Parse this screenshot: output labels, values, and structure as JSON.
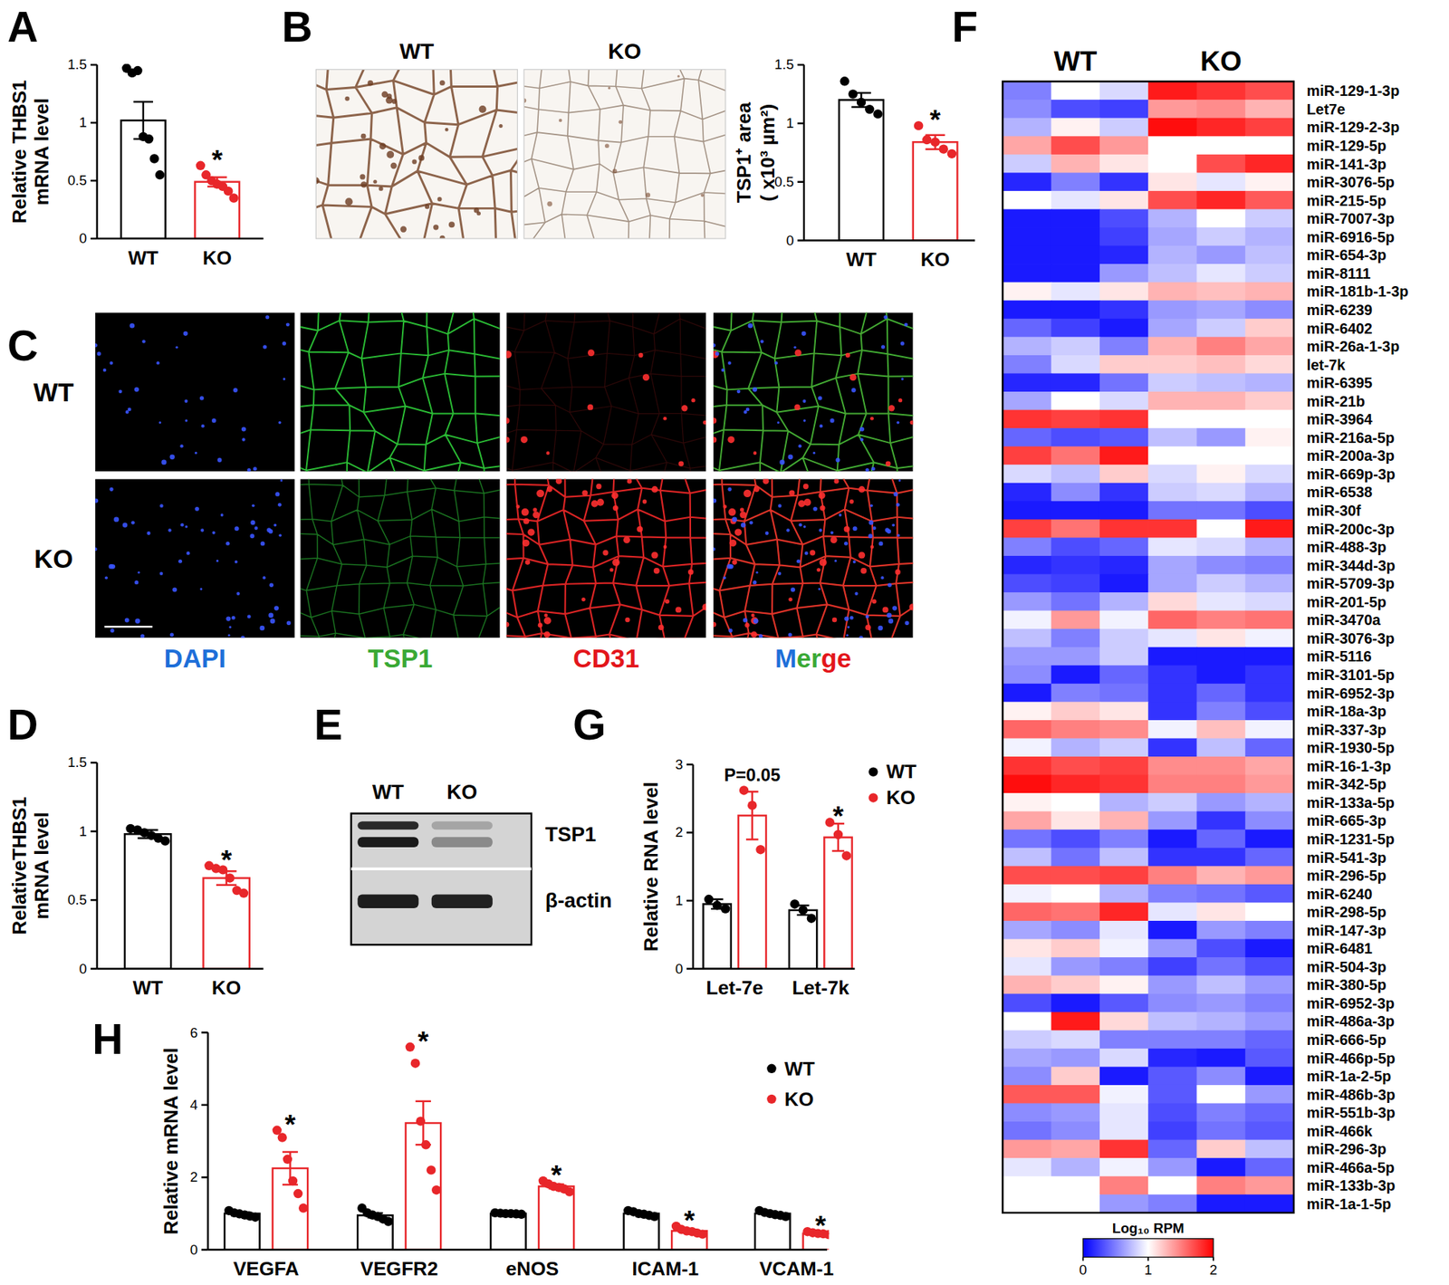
{
  "panel_letters": [
    "A",
    "B",
    "C",
    "D",
    "E",
    "F",
    "G",
    "H"
  ],
  "chart_data": [
    {
      "type": "bar",
      "ylabel": [
        "Relative THBS1",
        "mRNA level"
      ],
      "categories": [
        "WT",
        "KO"
      ],
      "values": [
        1.02,
        0.49
      ],
      "errors": [
        0.16,
        0.04
      ],
      "points": [
        [
          1.47,
          1.43,
          1.45,
          0.88,
          0.86,
          0.69,
          0.55
        ],
        [
          0.63,
          0.55,
          0.5,
          0.47,
          0.45,
          0.41,
          0.35
        ]
      ],
      "colors": [
        "#000000",
        "#e8262a"
      ],
      "significance": [
        null,
        "*"
      ],
      "ylim": [
        0,
        1.5
      ],
      "yticks": [
        0,
        0.5,
        1,
        1.5
      ]
    },
    {
      "type": "bar",
      "ylabel": [
        "TSP1⁺ area",
        "( x10³ µm²)"
      ],
      "categories": [
        "WT",
        "KO"
      ],
      "values": [
        1.2,
        0.84
      ],
      "errors": [
        0.06,
        0.06
      ],
      "points": [
        [
          1.36,
          1.25,
          1.18,
          1.12,
          1.08
        ],
        [
          0.98,
          0.86,
          0.84,
          0.78,
          0.74
        ]
      ],
      "colors": [
        "#000000",
        "#e8262a"
      ],
      "significance": [
        null,
        "*"
      ],
      "ylim": [
        0,
        1.5
      ],
      "yticks": [
        0,
        0.5,
        1,
        1.5
      ]
    },
    {
      "type": "bar",
      "ylabel": [
        "RelativeTHBS1",
        "mRNA level"
      ],
      "categories": [
        "WT",
        "KO"
      ],
      "values": [
        0.98,
        0.66
      ],
      "errors": [
        0.03,
        0.05
      ],
      "points": [
        [
          1.02,
          1.01,
          0.99,
          0.97,
          0.95,
          0.93
        ],
        [
          0.75,
          0.73,
          0.72,
          0.66,
          0.57,
          0.55
        ]
      ],
      "colors": [
        "#000000",
        "#e8262a"
      ],
      "significance": [
        null,
        "*"
      ],
      "ylim": [
        0,
        1.5
      ],
      "yticks": [
        0,
        0.5,
        1,
        1.5
      ]
    },
    {
      "type": "bar",
      "ylabel": [
        "Relative RNA level"
      ],
      "categories": [
        "Let-7e",
        "Let-7k"
      ],
      "series": [
        {
          "name": "WT",
          "color": "#000000",
          "values": [
            0.95,
            0.86
          ],
          "errors": [
            0.07,
            0.07
          ],
          "points": [
            [
              1.02,
              0.93,
              0.88
            ],
            [
              0.95,
              0.86,
              0.74
            ]
          ]
        },
        {
          "name": "KO",
          "color": "#e8262a",
          "values": [
            2.25,
            1.93
          ],
          "errors": [
            0.35,
            0.2
          ],
          "points": [
            [
              2.62,
              2.4,
              1.75
            ],
            [
              2.15,
              1.97,
              1.66
            ]
          ],
          "significance": [
            "P=0.05",
            "*"
          ]
        }
      ],
      "ylim": [
        0,
        3
      ],
      "yticks": [
        0,
        1,
        2,
        3
      ],
      "legend": "upper right"
    },
    {
      "type": "bar",
      "ylabel": [
        "Relative mRNA level"
      ],
      "categories": [
        "VEGFA",
        "VEGFR2",
        "eNOS",
        "ICAM-1",
        "VCAM-1"
      ],
      "series": [
        {
          "name": "WT",
          "color": "#000000",
          "values": [
            1.0,
            0.95,
            1.0,
            1.0,
            1.0
          ],
          "errors": [
            0.04,
            0.06,
            0.01,
            0.03,
            0.03
          ],
          "points": [
            [
              1.08,
              1.02,
              0.99,
              0.96,
              0.93,
              0.9
            ],
            [
              1.15,
              1.02,
              0.96,
              0.92,
              0.85,
              0.78
            ],
            [
              1.02,
              1.01,
              1.0,
              1.0,
              0.99,
              0.98
            ],
            [
              1.08,
              1.05,
              1.0,
              0.98,
              0.95,
              0.92
            ],
            [
              1.08,
              1.03,
              1.0,
              0.97,
              0.95,
              0.92
            ]
          ]
        },
        {
          "name": "KO",
          "color": "#e8262a",
          "values": [
            2.25,
            3.5,
            1.75,
            0.52,
            0.45
          ],
          "errors": [
            0.45,
            0.6,
            0.06,
            0.04,
            0.02
          ],
          "points": [
            [
              3.3,
              3.1,
              2.5,
              1.9,
              1.55,
              1.15
            ],
            [
              5.6,
              5.15,
              3.55,
              2.9,
              2.2,
              1.65
            ],
            [
              1.9,
              1.82,
              1.75,
              1.72,
              1.68,
              1.6
            ],
            [
              0.65,
              0.56,
              0.52,
              0.5,
              0.46,
              0.43
            ],
            [
              0.5,
              0.47,
              0.45,
              0.44,
              0.42,
              0.4
            ]
          ],
          "significance": [
            "*",
            "*",
            "*",
            "*",
            "*"
          ]
        }
      ],
      "ylim": [
        0,
        6
      ],
      "yticks": [
        0,
        2,
        4,
        6
      ],
      "legend": "upper right"
    },
    {
      "type": "heatmap",
      "column_groups": [
        "WT",
        "KO"
      ],
      "rows": [
        "miR-129-1-3p",
        "Let7e",
        "miR-129-2-3p",
        "miR-129-5p",
        "miR-141-3p",
        "miR-3076-5p",
        "miR-215-5p",
        "miR-7007-3p",
        "miR-6916-5p",
        "miR-654-3p",
        "miR-8111",
        "miR-181b-1-3p",
        "miR-6239",
        "miR-6402",
        "miR-26a-1-3p",
        "let-7k",
        "miR-6395",
        "miR-21b",
        "miR-3964",
        "miR-216a-5p",
        "miR-200a-3p",
        "miR-669p-3p",
        "miR-6538",
        "miR-30f",
        "miR-200c-3p",
        "miR-488-3p",
        "miR-344d-3p",
        "miR-5709-3p",
        "miR-201-5p",
        "miR-3470a",
        "miR-3076-3p",
        "miR-5116",
        "miR-3101-5p",
        "miR-6952-3p",
        "miR-18a-3p",
        "miR-337-3p",
        "miR-1930-5p",
        "miR-16-1-3p",
        "miR-342-5p",
        "miR-133a-5p",
        "miR-665-3p",
        "miR-1231-5p",
        "miR-541-3p",
        "miR-296-5p",
        "miR-6240",
        "miR-298-5p",
        "miR-147-3p",
        "miR-6481",
        "miR-504-3p",
        "miR-380-5p",
        "miR-6952-3p",
        "miR-486a-3p",
        "miR-666-5p",
        "miR-466p-5p",
        "miR-1a-2-5p",
        "miR-486b-3p",
        "miR-551b-3p",
        "miR-466k",
        "miR-296-3p",
        "miR-466a-5p",
        "miR-133b-3p",
        "miR-1a-1-5p"
      ],
      "cells": [
        [
          0.5,
          1.0,
          0.85,
          1.9,
          1.8,
          1.7
        ],
        [
          0.55,
          0.3,
          0.25,
          1.4,
          1.45,
          1.3
        ],
        [
          0.7,
          1.05,
          0.8,
          1.95,
          1.85,
          1.75
        ],
        [
          1.35,
          1.7,
          1.4,
          1.0,
          1.0,
          1.0
        ],
        [
          0.8,
          1.3,
          1.1,
          1.0,
          1.7,
          1.85
        ],
        [
          0.15,
          0.5,
          0.2,
          1.1,
          0.9,
          1.05
        ],
        [
          1.0,
          0.9,
          1.1,
          1.7,
          1.85,
          1.65
        ],
        [
          0.1,
          0.1,
          0.3,
          0.7,
          1.0,
          0.8
        ],
        [
          0.1,
          0.1,
          0.25,
          0.65,
          0.8,
          0.7
        ],
        [
          0.1,
          0.1,
          0.15,
          0.7,
          0.6,
          0.75
        ],
        [
          0.1,
          0.1,
          0.6,
          0.75,
          0.9,
          0.8
        ],
        [
          1.05,
          0.9,
          1.1,
          1.3,
          1.25,
          1.3
        ],
        [
          0.1,
          0.1,
          0.2,
          0.6,
          0.65,
          0.55
        ],
        [
          0.4,
          0.25,
          0.1,
          0.65,
          0.8,
          1.2
        ],
        [
          0.7,
          0.8,
          0.5,
          1.3,
          1.5,
          1.35
        ],
        [
          0.5,
          0.85,
          1.2,
          1.2,
          1.25,
          1.15
        ],
        [
          0.15,
          0.15,
          0.45,
          0.8,
          0.75,
          0.7
        ],
        [
          0.65,
          1.0,
          0.85,
          1.3,
          1.3,
          1.2
        ],
        [
          1.8,
          1.75,
          1.8,
          1.0,
          1.0,
          1.0
        ],
        [
          0.4,
          0.3,
          0.35,
          0.75,
          0.6,
          1.05
        ],
        [
          1.75,
          1.55,
          1.9,
          1.0,
          1.0,
          1.0
        ],
        [
          0.85,
          0.75,
          1.2,
          0.85,
          1.05,
          0.85
        ],
        [
          0.15,
          0.55,
          0.2,
          0.8,
          0.85,
          0.7
        ],
        [
          0.1,
          0.1,
          0.1,
          0.45,
          0.45,
          0.3
        ],
        [
          1.75,
          1.55,
          1.8,
          1.8,
          1.0,
          1.9
        ],
        [
          0.5,
          0.3,
          0.4,
          0.9,
          0.85,
          0.7
        ],
        [
          0.15,
          0.2,
          0.15,
          0.65,
          0.55,
          0.5
        ],
        [
          0.3,
          0.25,
          0.1,
          0.65,
          0.8,
          0.7
        ],
        [
          0.6,
          0.45,
          0.7,
          1.15,
          0.9,
          0.85
        ],
        [
          0.95,
          1.4,
          0.95,
          1.6,
          1.5,
          1.55
        ],
        [
          0.75,
          0.5,
          0.8,
          0.9,
          1.1,
          0.95
        ],
        [
          0.6,
          0.6,
          0.8,
          0.1,
          0.1,
          0.1
        ],
        [
          0.55,
          0.1,
          0.4,
          0.2,
          0.1,
          0.2
        ],
        [
          0.1,
          0.5,
          0.45,
          0.2,
          0.4,
          0.2
        ],
        [
          1.05,
          1.2,
          1.1,
          0.2,
          0.5,
          0.3
        ],
        [
          1.6,
          1.5,
          1.45,
          0.95,
          1.25,
          0.95
        ],
        [
          0.95,
          0.7,
          0.8,
          0.2,
          0.75,
          0.4
        ],
        [
          1.8,
          1.7,
          1.75,
          1.45,
          1.45,
          1.35
        ],
        [
          1.95,
          1.85,
          1.8,
          1.5,
          1.5,
          1.4
        ],
        [
          1.05,
          1.0,
          0.7,
          0.8,
          0.6,
          0.7
        ],
        [
          1.35,
          1.1,
          1.3,
          0.6,
          0.2,
          0.55
        ],
        [
          0.45,
          0.3,
          0.5,
          0.1,
          0.4,
          0.1
        ],
        [
          0.75,
          0.45,
          0.75,
          0.2,
          0.2,
          0.4
        ],
        [
          1.7,
          1.7,
          1.75,
          1.5,
          1.3,
          1.4
        ],
        [
          0.95,
          1.0,
          0.7,
          0.5,
          0.45,
          0.35
        ],
        [
          1.6,
          1.55,
          1.85,
          0.9,
          1.1,
          1.0
        ],
        [
          0.65,
          0.55,
          0.9,
          0.1,
          0.6,
          0.5
        ],
        [
          1.1,
          1.2,
          0.95,
          0.6,
          0.3,
          0.1
        ],
        [
          0.9,
          0.6,
          0.5,
          0.25,
          0.45,
          0.3
        ],
        [
          1.3,
          1.2,
          1.05,
          0.6,
          0.75,
          0.6
        ],
        [
          0.3,
          0.1,
          0.35,
          0.55,
          0.6,
          0.5
        ],
        [
          1.0,
          1.9,
          1.15,
          0.75,
          0.7,
          0.6
        ],
        [
          0.8,
          0.85,
          0.5,
          0.5,
          0.5,
          0.4
        ],
        [
          0.65,
          0.6,
          0.85,
          0.15,
          0.1,
          0.35
        ],
        [
          0.55,
          1.2,
          0.1,
          0.35,
          0.55,
          0.1
        ],
        [
          1.65,
          1.65,
          0.95,
          0.35,
          1.0,
          0.6
        ],
        [
          0.55,
          0.6,
          0.9,
          0.3,
          0.5,
          0.4
        ],
        [
          0.45,
          0.55,
          0.9,
          0.25,
          0.45,
          0.35
        ],
        [
          1.4,
          1.35,
          1.8,
          0.4,
          1.2,
          0.75
        ],
        [
          0.9,
          0.7,
          0.95,
          0.6,
          0.1,
          0.4
        ],
        [
          1.0,
          1.0,
          1.5,
          1.0,
          1.5,
          1.4
        ],
        [
          1.0,
          1.0,
          0.6,
          0.5,
          0.1,
          0.1
        ]
      ],
      "colorbar": {
        "label": "Log₁₀ RPM",
        "range": [
          0,
          2
        ],
        "ticks": [
          0,
          1,
          2
        ],
        "colors": [
          "#0000ff",
          "#ffffff",
          "#ff0000"
        ]
      }
    }
  ],
  "images": {
    "B": {
      "labels": [
        "WT",
        "KO"
      ]
    },
    "C": {
      "rows": [
        "WT",
        "KO"
      ],
      "columns": [
        [
          {
            "text": "DAPI",
            "color": "#1e6fd9"
          }
        ],
        [
          {
            "text": "TSP1",
            "color": "#3aa935"
          }
        ],
        [
          {
            "text": "CD31",
            "color": "#e3161b"
          }
        ],
        [
          {
            "text": "M",
            "color": "#1e6fd9"
          },
          {
            "text": "er",
            "color": "#3aa935"
          },
          {
            "text": "ge",
            "color": "#e3161b"
          }
        ]
      ]
    },
    "E": {
      "lanes": [
        "WT",
        "KO"
      ],
      "bands": [
        "TSP1",
        "β-actin"
      ]
    }
  }
}
